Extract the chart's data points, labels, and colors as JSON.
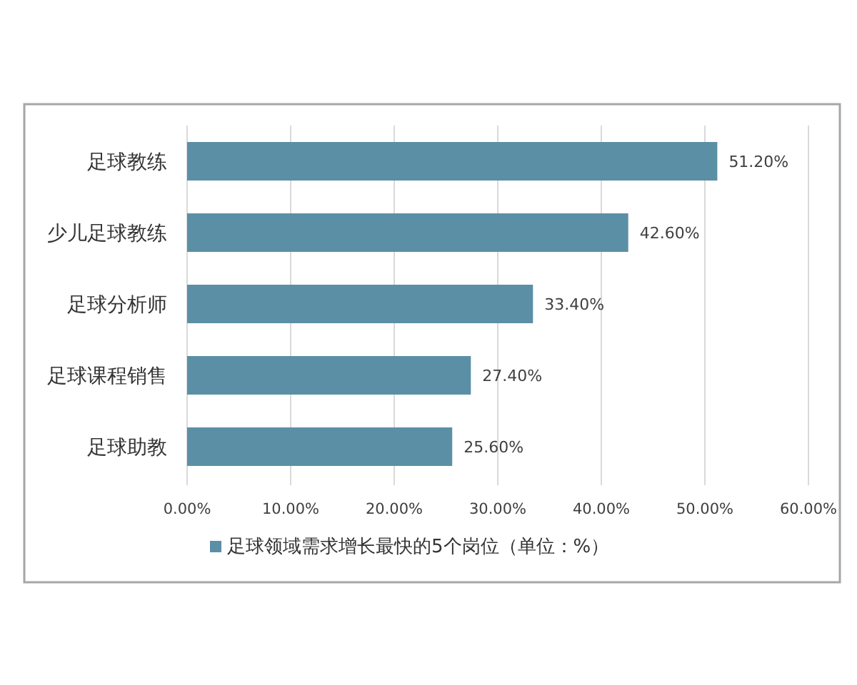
{
  "chart_data": {
    "type": "bar",
    "orientation": "horizontal",
    "categories": [
      "足球教练",
      "少儿足球教练",
      "足球分析师",
      "足球课程销售",
      "足球助教"
    ],
    "series": [
      {
        "name": "足球领域需求增长最快的5个岗位（单位：%）",
        "color": "#5b8fa6",
        "values": [
          51.2,
          42.6,
          33.4,
          27.4,
          25.6
        ],
        "value_labels": [
          "51.20%",
          "42.60%",
          "33.40%",
          "27.40%",
          "25.60%"
        ]
      }
    ],
    "xlim": [
      0,
      60
    ],
    "xticks": [
      {
        "value": 0,
        "label": "0.00%"
      },
      {
        "value": 10,
        "label": "10.00%"
      },
      {
        "value": 20,
        "label": "20.00%"
      },
      {
        "value": 30,
        "label": "30.00%"
      },
      {
        "value": 40,
        "label": "40.00%"
      },
      {
        "value": 50,
        "label": "50.00%"
      },
      {
        "value": 60,
        "label": "60.00%"
      }
    ],
    "grid": "x",
    "legend": "bottom"
  }
}
